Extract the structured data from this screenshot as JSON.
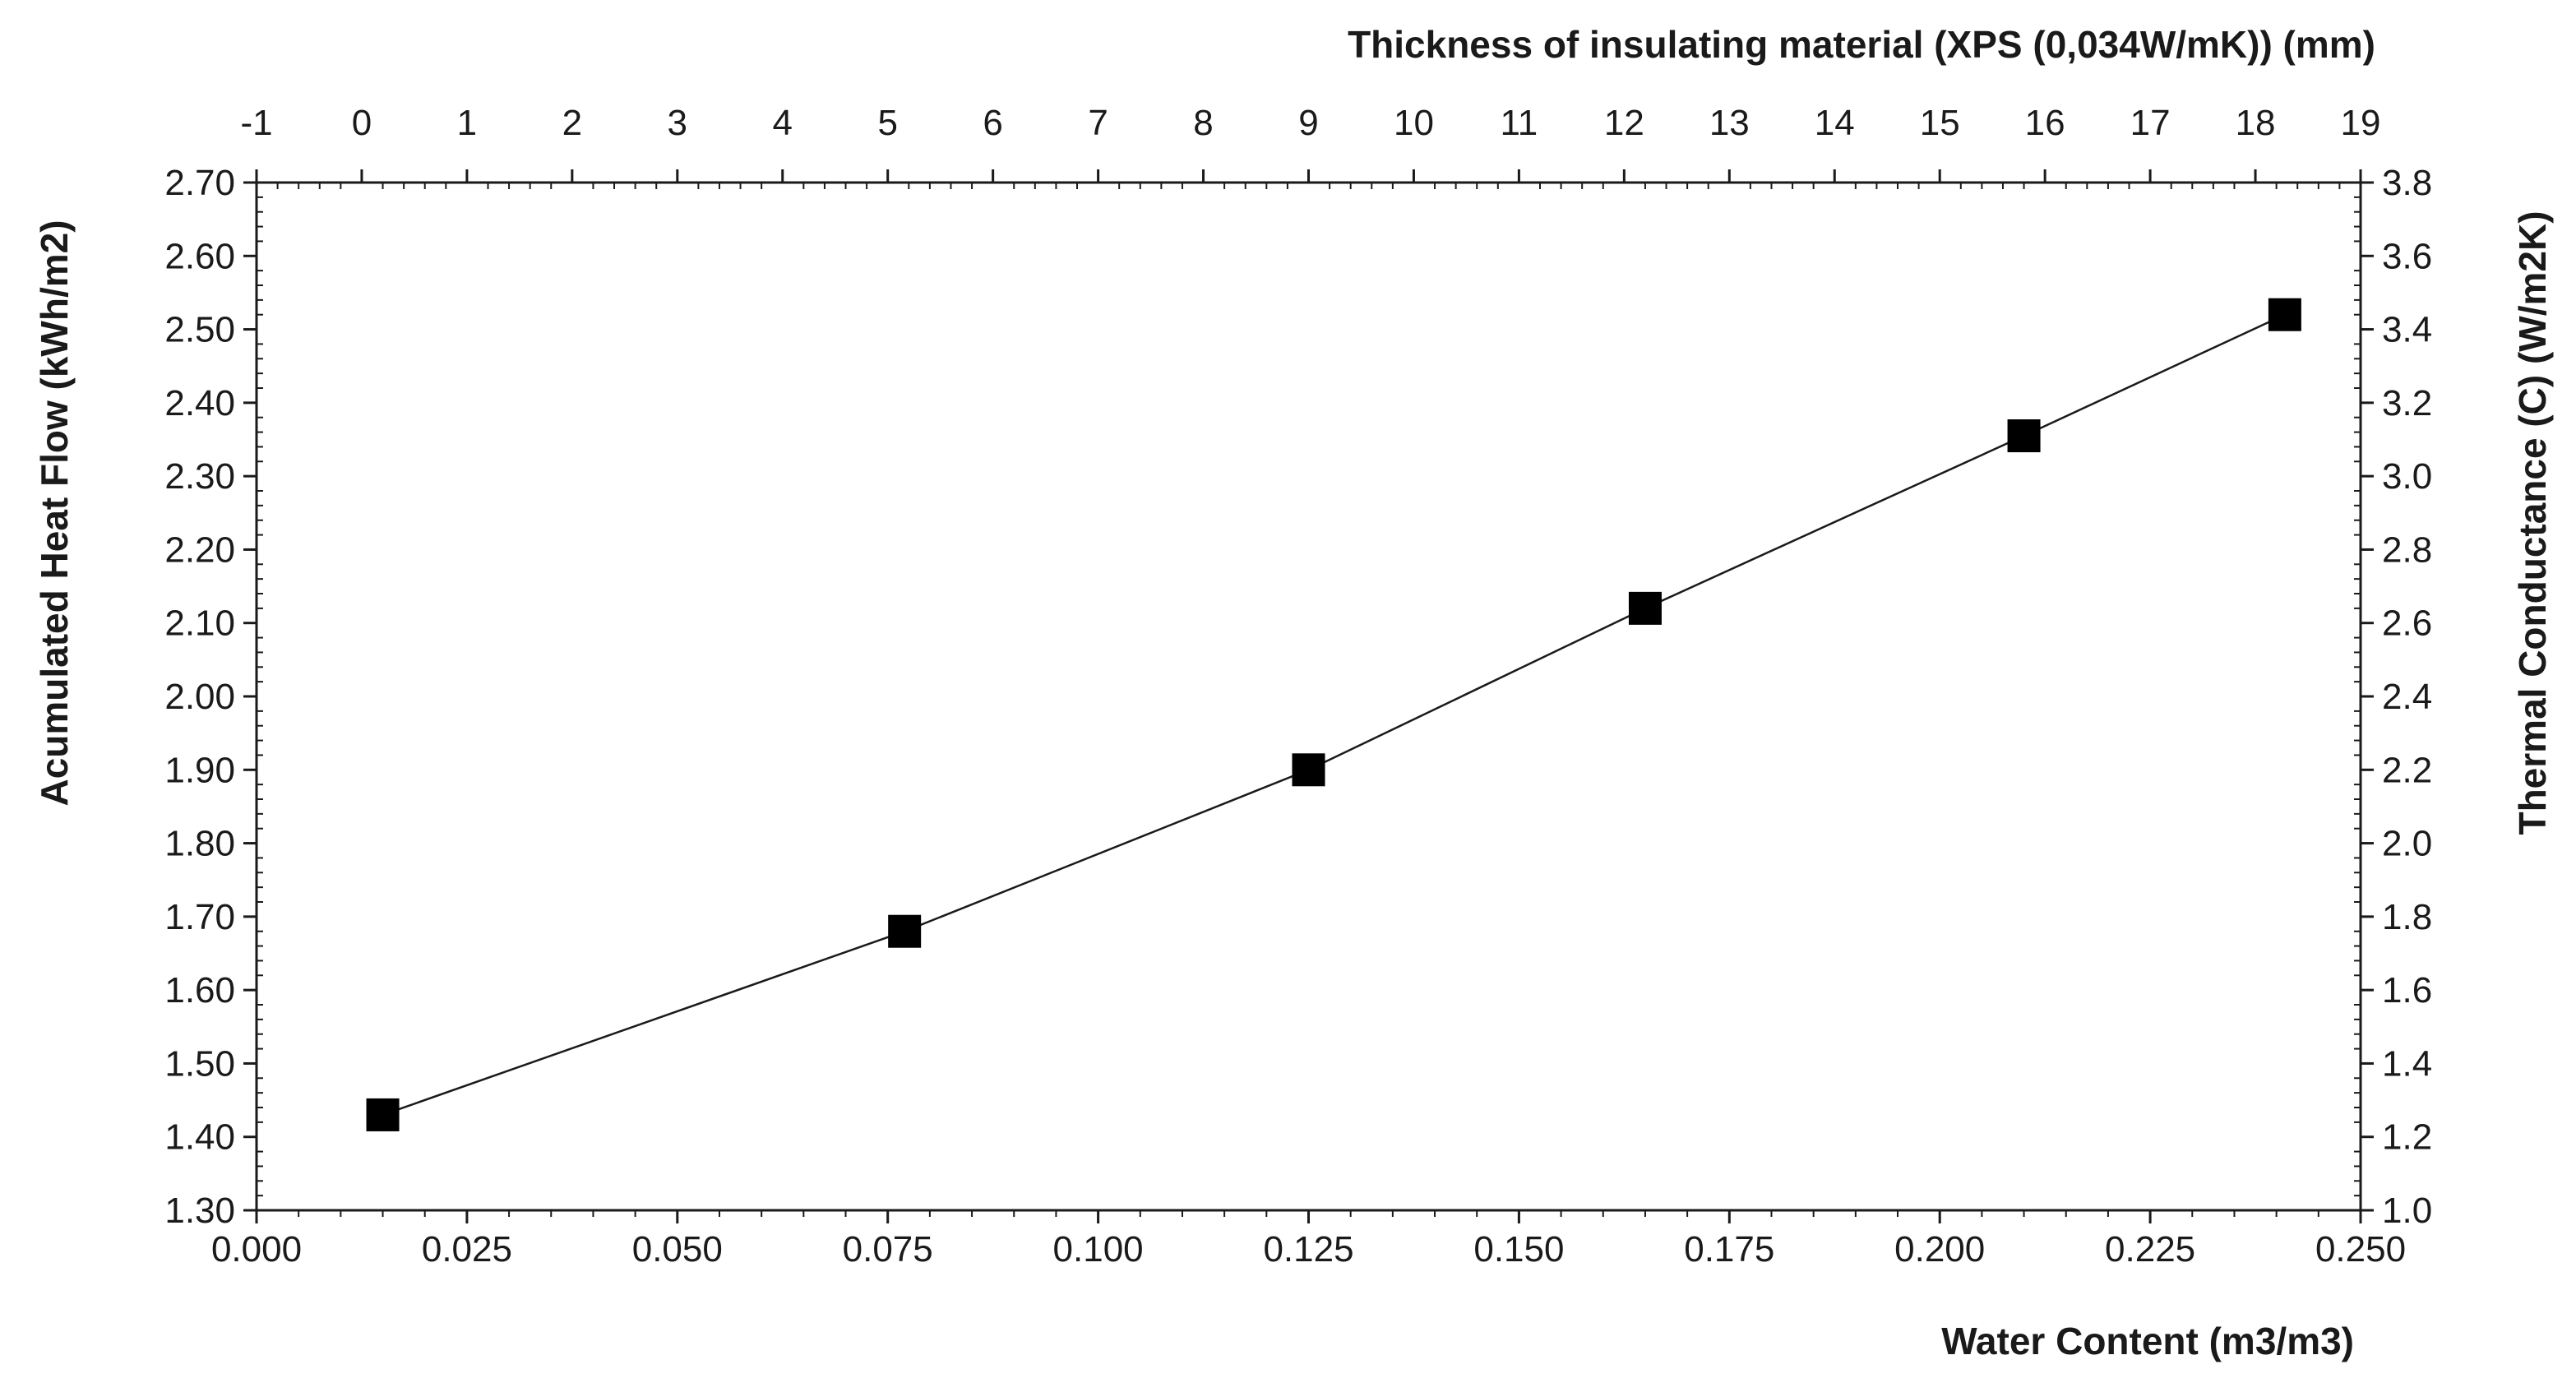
{
  "chart_data": {
    "type": "scatter",
    "title": "",
    "xlabel": "Water Content (m3/m3)",
    "ylabel": "Acumulated Heat Flow (kWh/m2)",
    "x2label": "Thickness of insulating material (XPS (0,034W/mK)) (mm)",
    "y2label": "Thermal Conductance  (C)  (W/m2K)",
    "xlim": [
      0.0,
      0.25
    ],
    "ylim": [
      1.3,
      2.7
    ],
    "x2lim": [
      -1,
      19
    ],
    "y2lim": [
      1.0,
      3.8
    ],
    "x_ticks": [
      "0.000",
      "0.025",
      "0.050",
      "0.075",
      "0.100",
      "0.125",
      "0.150",
      "0.175",
      "0.200",
      "0.225",
      "0.250"
    ],
    "y_ticks": [
      "1.30",
      "1.40",
      "1.50",
      "1.60",
      "1.70",
      "1.80",
      "1.90",
      "2.00",
      "2.10",
      "2.20",
      "2.30",
      "2.40",
      "2.50",
      "2.60",
      "2.70"
    ],
    "x2_ticks": [
      "-1",
      "0",
      "1",
      "2",
      "3",
      "4",
      "5",
      "6",
      "7",
      "8",
      "9",
      "10",
      "11",
      "12",
      "13",
      "14",
      "15",
      "16",
      "17",
      "18",
      "19"
    ],
    "y2_ticks": [
      "1.0",
      "1.2",
      "1.4",
      "1.6",
      "1.8",
      "2.0",
      "2.2",
      "2.4",
      "2.6",
      "2.8",
      "3.0",
      "3.2",
      "3.4",
      "3.6",
      "3.8"
    ],
    "grid": false,
    "legend": "none",
    "series": [
      {
        "name": "Acumulated Heat Flow",
        "marker": "square",
        "line": true,
        "x": [
          0.015,
          0.077,
          0.125,
          0.165,
          0.21,
          0.241
        ],
        "y": [
          1.43,
          1.68,
          1.9,
          2.12,
          2.355,
          2.52
        ]
      }
    ],
    "colors": {
      "axis": "#1a1a1a",
      "marker": "#000000",
      "line": "#1a1a1a"
    }
  }
}
